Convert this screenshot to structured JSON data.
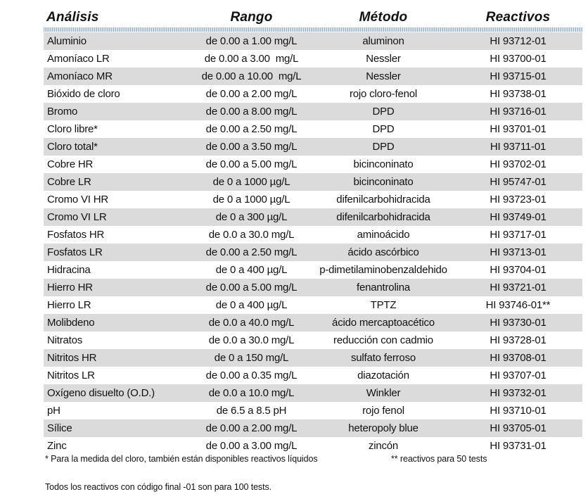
{
  "table": {
    "headers": [
      "Análisis",
      "Rango",
      "Método",
      "Reactivos"
    ],
    "stripe_color": "#dbdbdb",
    "separator_color": "#9db6cc",
    "rows": [
      {
        "analisis": "Aluminio",
        "rango": "de 0.00 a 1.00 mg/L",
        "metodo": "aluminon",
        "reactivos": "HI 93712-01"
      },
      {
        "analisis": "Amoníaco LR",
        "rango": "de 0.00 a 3.00  mg/L",
        "metodo": "Nessler",
        "reactivos": "HI 93700-01"
      },
      {
        "analisis": "Amoníaco MR",
        "rango": "de 0.00 a 10.00  mg/L",
        "metodo": "Nessler",
        "reactivos": "HI 93715-01"
      },
      {
        "analisis": "Bióxido de cloro",
        "rango": "de 0.00 a 2.00 mg/L",
        "metodo": "rojo cloro-fenol",
        "reactivos": "HI 93738-01"
      },
      {
        "analisis": "Bromo",
        "rango": "de 0.00 a 8.00 mg/L",
        "metodo": "DPD",
        "reactivos": "HI 93716-01"
      },
      {
        "analisis": "Cloro libre*",
        "rango": "de 0.00 a 2.50 mg/L",
        "metodo": "DPD",
        "reactivos": "HI 93701-01"
      },
      {
        "analisis": "Cloro total*",
        "rango": "de 0.00 a 3.50 mg/L",
        "metodo": "DPD",
        "reactivos": "HI 93711-01"
      },
      {
        "analisis": "Cobre HR",
        "rango": "de 0.00 a 5.00 mg/L",
        "metodo": "bicinconinato",
        "reactivos": "HI 93702-01"
      },
      {
        "analisis": "Cobre LR",
        "rango": "de 0 a 1000 µg/L",
        "metodo": "bicinconinato",
        "reactivos": "HI 95747-01"
      },
      {
        "analisis": "Cromo VI HR",
        "rango": "de 0 a 1000 µg/L",
        "metodo": "difenilcarbohidracida",
        "reactivos": "HI 93723-01"
      },
      {
        "analisis": "Cromo VI LR",
        "rango": "de 0 a 300 µg/L",
        "metodo": "difenilcarbohidracida",
        "reactivos": "HI 93749-01"
      },
      {
        "analisis": "Fosfatos HR",
        "rango": "de 0.0 a 30.0 mg/L",
        "metodo": "aminoácido",
        "reactivos": "HI 93717-01"
      },
      {
        "analisis": "Fosfatos LR",
        "rango": "de 0.00 a 2.50 mg/L",
        "metodo": "ácido ascórbico",
        "reactivos": "HI 93713-01"
      },
      {
        "analisis": "Hidracina",
        "rango": "de 0 a 400 µg/L",
        "metodo": "p-dimetilaminobenzaldehido",
        "reactivos": "HI 93704-01"
      },
      {
        "analisis": "Hierro HR",
        "rango": "de 0.00 a 5.00 mg/L",
        "metodo": "fenantrolina",
        "reactivos": "HI 93721-01"
      },
      {
        "analisis": "Hierro LR",
        "rango": "de 0 a 400 µg/L",
        "metodo": "TPTZ",
        "reactivos": "HI 93746-01**"
      },
      {
        "analisis": "Molibdeno",
        "rango": "de 0.0 a 40.0 mg/L",
        "metodo": "ácido mercaptoacético",
        "reactivos": "HI 93730-01"
      },
      {
        "analisis": "Nitratos",
        "rango": "de 0.0 a 30.0 mg/L",
        "metodo": "reducción con cadmio",
        "reactivos": "HI 93728-01"
      },
      {
        "analisis": "Nitritos HR",
        "rango": "de 0 a 150 mg/L",
        "metodo": "sulfato ferroso",
        "reactivos": "HI 93708-01"
      },
      {
        "analisis": "Nitritos LR",
        "rango": "de 0.00 a 0.35 mg/L",
        "metodo": "diazotación",
        "reactivos": "HI 93707-01"
      },
      {
        "analisis": "Oxígeno disuelto (O.D.)",
        "rango": "de 0.0 a 10.0 mg/L",
        "metodo": "Winkler",
        "reactivos": "HI 93732-01"
      },
      {
        "analisis": "pH",
        "rango": "de 6.5 a 8.5 pH",
        "metodo": "rojo fenol",
        "reactivos": "HI 93710-01"
      },
      {
        "analisis": "Sílice",
        "rango": "de 0.00 a 2.00 mg/L",
        "metodo": "heteropoly blue",
        "reactivos": "HI 93705-01"
      },
      {
        "analisis": "Zinc",
        "rango": "de 0.00 a 3.00 mg/L",
        "metodo": "zincón",
        "reactivos": "HI 93731-01"
      }
    ]
  },
  "footnotes": {
    "chlorine_note": "* Para la medida del cloro, también están disponibles reactivos líquidos",
    "fifty_tests_note": "** reactivos para 50 tests",
    "bottom_note": "Todos los reactivos con código final -01 son para 100 tests."
  }
}
